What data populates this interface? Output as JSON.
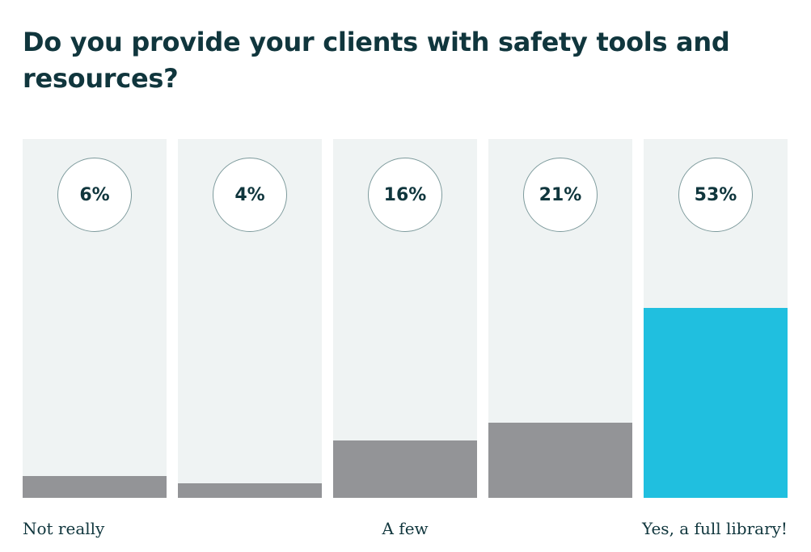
{
  "chart_data": {
    "type": "bar",
    "title": "Do you provide your clients with safety tools and resources?",
    "categories": [
      "Not really",
      "",
      "A few",
      "",
      "Yes, a full library!"
    ],
    "values": [
      6,
      4,
      16,
      21,
      53
    ],
    "value_labels": [
      "6%",
      "4%",
      "16%",
      "21%",
      "53%"
    ],
    "unit": "%",
    "ylim": [
      0,
      100
    ],
    "highlight_index": 4,
    "grid": false,
    "legend": "none",
    "colors": {
      "background": "#eff3f3",
      "bar": "#939497",
      "highlight": "#20bfdf",
      "text": "#10363d"
    }
  }
}
